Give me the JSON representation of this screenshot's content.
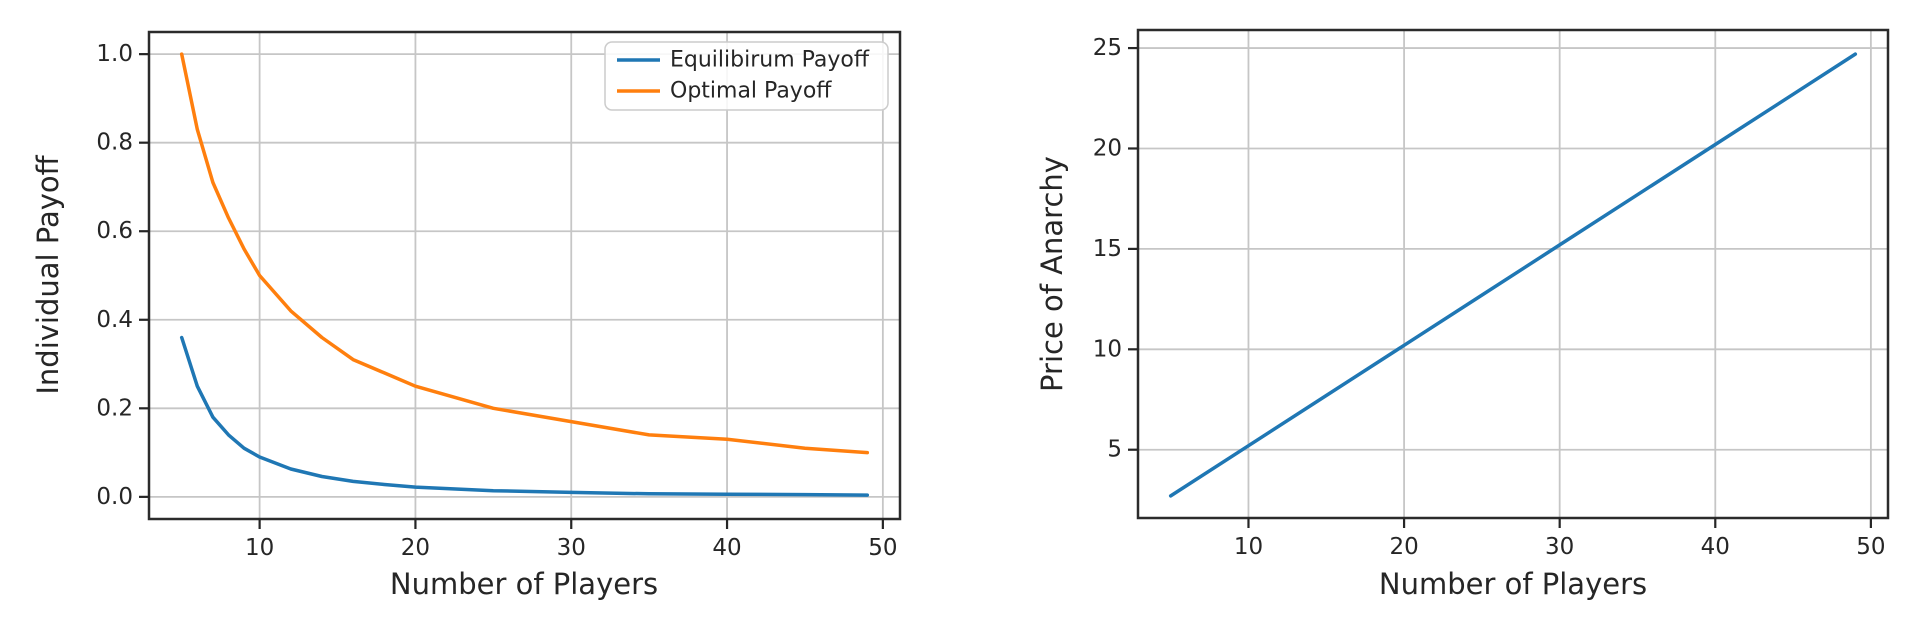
{
  "figure": {
    "background": "#ffffff",
    "text_color": "#262626",
    "grid_color": "#c6c6c6",
    "spine_color": "#2b2b2b",
    "series_colors": {
      "blue": "#1f77b4",
      "orange": "#ff7f0e"
    }
  },
  "chart_data": [
    {
      "id": "individual-payoff",
      "type": "line",
      "title": "",
      "xlabel": "Number of Players",
      "ylabel": "Individual Payoff",
      "grid": true,
      "xlim": [
        2.9,
        51.1
      ],
      "ylim": [
        -0.05,
        1.05
      ],
      "xticks": [
        10,
        20,
        30,
        40,
        50
      ],
      "xtick_labels": [
        "10",
        "20",
        "30",
        "40",
        "50"
      ],
      "yticks": [
        0.0,
        0.2,
        0.4,
        0.6,
        0.8,
        1.0
      ],
      "ytick_labels": [
        "0.0",
        "0.2",
        "0.4",
        "0.6",
        "0.8",
        "1.0"
      ],
      "legend": {
        "position": "upper right",
        "entries": [
          "Equilibirum Payoff",
          "Optimal Payoff"
        ]
      },
      "x": [
        5,
        6,
        7,
        8,
        9,
        10,
        12,
        14,
        16,
        18,
        20,
        25,
        30,
        35,
        40,
        45,
        49
      ],
      "series": [
        {
          "name": "Equilibirum Payoff",
          "color": "#1f77b4",
          "values": [
            0.36,
            0.25,
            0.18,
            0.14,
            0.11,
            0.09,
            0.063,
            0.046,
            0.035,
            0.028,
            0.022,
            0.014,
            0.01,
            0.007,
            0.006,
            0.005,
            0.004
          ]
        },
        {
          "name": "Optimal Payoff",
          "color": "#ff7f0e",
          "values": [
            1.0,
            0.83,
            0.71,
            0.63,
            0.56,
            0.5,
            0.42,
            0.36,
            0.31,
            0.28,
            0.25,
            0.2,
            0.17,
            0.14,
            0.13,
            0.11,
            0.1
          ]
        }
      ]
    },
    {
      "id": "price-of-anarchy",
      "type": "line",
      "title": "",
      "xlabel": "Number of Players",
      "ylabel": "Price of Anarchy",
      "grid": true,
      "xlim": [
        2.9,
        51.1
      ],
      "ylim": [
        1.6,
        25.9
      ],
      "xticks": [
        10,
        20,
        30,
        40,
        50
      ],
      "xtick_labels": [
        "10",
        "20",
        "30",
        "40",
        "50"
      ],
      "yticks": [
        5,
        10,
        15,
        20,
        25
      ],
      "ytick_labels": [
        "5",
        "10",
        "15",
        "20",
        "25"
      ],
      "legend": null,
      "x": [
        5,
        10,
        15,
        20,
        25,
        30,
        35,
        40,
        45,
        49
      ],
      "series": [
        {
          "name": "Price of Anarchy",
          "color": "#1f77b4",
          "values": [
            2.7,
            5.2,
            7.7,
            10.2,
            12.7,
            15.2,
            17.7,
            20.2,
            22.7,
            24.7
          ]
        }
      ]
    }
  ]
}
